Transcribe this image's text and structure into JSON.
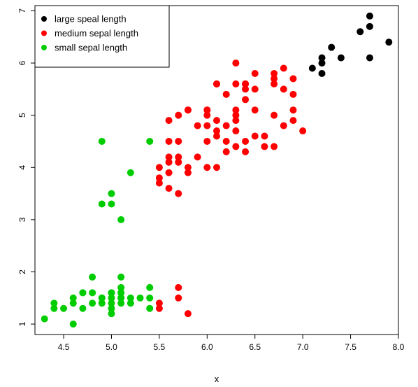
{
  "chart_data": {
    "type": "scatter",
    "title": "",
    "xlabel": "x",
    "ylabel": "",
    "xlim": [
      4.2,
      8.0
    ],
    "ylim": [
      0.8,
      7.1
    ],
    "x_ticks": [
      "4.5",
      "5.0",
      "5.5",
      "6.0",
      "6.5",
      "7.0",
      "7.5",
      "8.0"
    ],
    "y_ticks": [
      "1",
      "2",
      "3",
      "4",
      "5",
      "6",
      "7"
    ],
    "grid": false,
    "legend_position": "top-left",
    "series": [
      {
        "name": "large speal length",
        "color": "#000000",
        "x": [
          7.1,
          7.2,
          7.2,
          7.2,
          7.3,
          7.4,
          7.6,
          7.7,
          7.7,
          7.7,
          7.9
        ],
        "y": [
          5.9,
          5.8,
          6.0,
          6.1,
          6.3,
          6.1,
          6.6,
          6.9,
          6.7,
          6.1,
          6.4
        ]
      },
      {
        "name": "medium sepal length",
        "color": "#ff0000",
        "x": [
          5.5,
          5.5,
          5.5,
          5.5,
          5.5,
          5.6,
          5.6,
          5.6,
          5.6,
          5.6,
          5.6,
          5.7,
          5.7,
          5.7,
          5.7,
          5.7,
          5.7,
          5.7,
          5.8,
          5.8,
          5.8,
          5.8,
          5.8,
          5.9,
          5.9,
          6.0,
          6.0,
          6.0,
          6.0,
          6.0,
          6.0,
          6.1,
          6.1,
          6.1,
          6.1,
          6.1,
          6.1,
          6.2,
          6.2,
          6.2,
          6.2,
          6.3,
          6.3,
          6.3,
          6.3,
          6.3,
          6.3,
          6.3,
          6.4,
          6.4,
          6.4,
          6.4,
          6.4,
          6.4,
          6.5,
          6.5,
          6.5,
          6.5,
          6.6,
          6.6,
          6.7,
          6.7,
          6.7,
          6.7,
          6.7,
          6.8,
          6.8,
          6.8,
          6.9,
          6.9,
          6.9,
          6.9,
          7.0
        ],
        "y": [
          1.3,
          1.4,
          3.7,
          3.8,
          4.0,
          3.6,
          3.9,
          4.1,
          4.2,
          4.5,
          4.9,
          1.5,
          1.7,
          3.5,
          4.1,
          4.2,
          4.5,
          5.0,
          1.2,
          3.9,
          4.0,
          5.1,
          5.1,
          4.2,
          4.8,
          4.0,
          4.5,
          4.8,
          5.0,
          5.1,
          5.1,
          4.0,
          4.6,
          4.7,
          4.9,
          5.6,
          5.6,
          4.3,
          4.5,
          4.8,
          5.4,
          4.4,
          4.7,
          4.9,
          5.0,
          5.1,
          5.6,
          6.0,
          4.3,
          4.5,
          5.3,
          5.5,
          5.6,
          5.6,
          4.6,
          5.1,
          5.5,
          5.8,
          4.4,
          4.6,
          4.4,
          5.0,
          5.6,
          5.7,
          5.8,
          4.8,
          5.5,
          5.9,
          4.9,
          5.1,
          5.4,
          5.7,
          4.7
        ]
      },
      {
        "name": "small sepal length",
        "color": "#00cd00",
        "x": [
          4.3,
          4.4,
          4.4,
          4.5,
          4.6,
          4.6,
          4.6,
          4.7,
          4.7,
          4.7,
          4.8,
          4.8,
          4.8,
          4.9,
          4.9,
          4.9,
          4.9,
          4.9,
          5.0,
          5.0,
          5.0,
          5.0,
          5.0,
          5.0,
          5.0,
          5.0,
          5.1,
          5.1,
          5.1,
          5.1,
          5.1,
          5.1,
          5.1,
          5.2,
          5.2,
          5.2,
          5.3,
          5.4,
          5.4,
          5.4,
          5.4
        ],
        "y": [
          1.1,
          1.3,
          1.4,
          1.3,
          1.0,
          1.4,
          1.5,
          1.3,
          1.6,
          1.6,
          1.4,
          1.6,
          1.9,
          1.4,
          1.5,
          3.3,
          4.5,
          1.5,
          1.2,
          1.3,
          1.4,
          1.5,
          1.6,
          3.3,
          3.5,
          1.6,
          1.4,
          1.5,
          1.6,
          1.7,
          1.9,
          3.0,
          1.5,
          1.4,
          1.5,
          3.9,
          1.5,
          1.3,
          1.5,
          1.7,
          4.5
        ]
      }
    ]
  }
}
